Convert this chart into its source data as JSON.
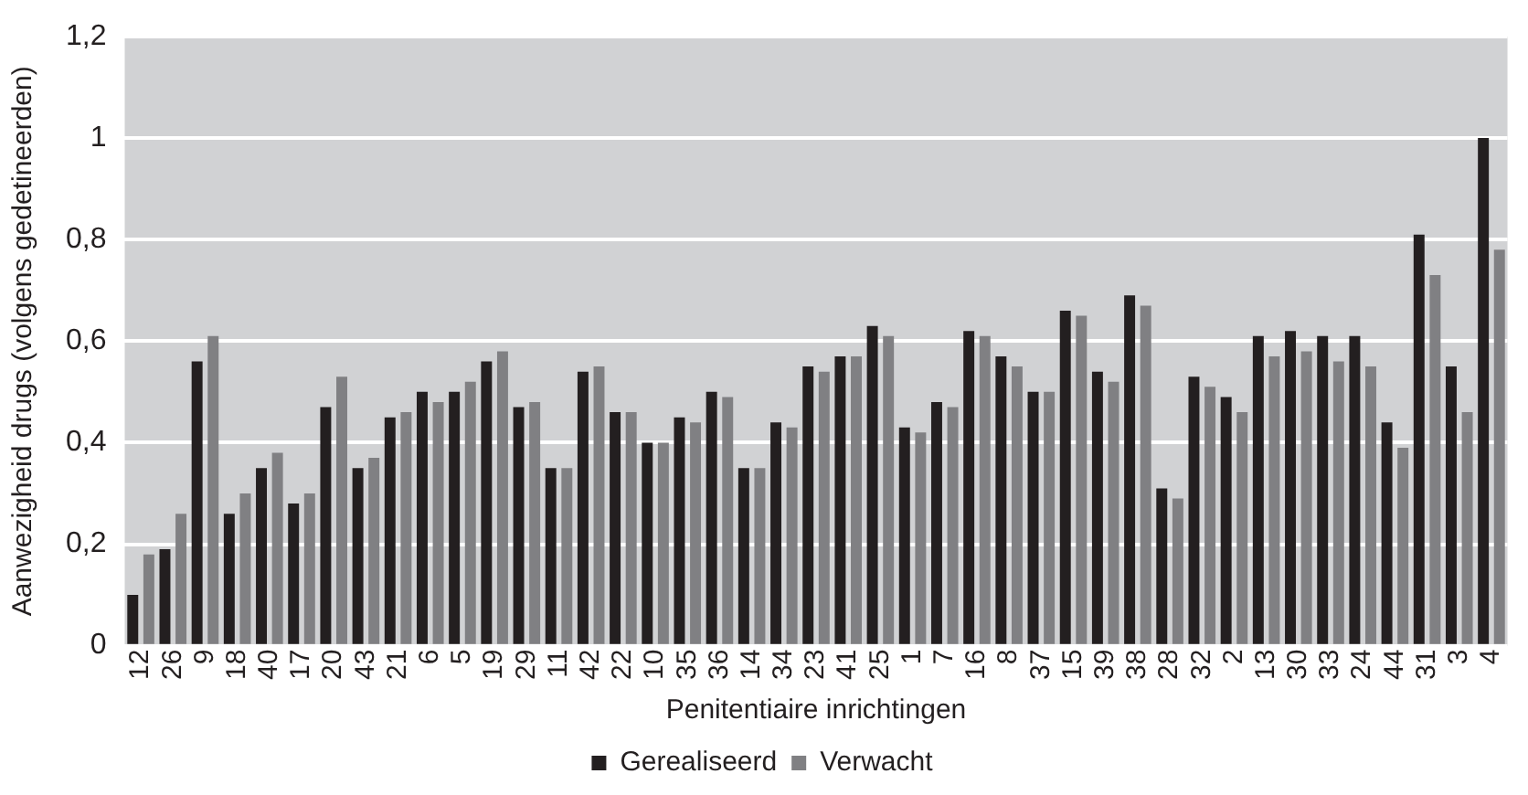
{
  "chart_data": {
    "type": "bar",
    "xlabel": "Penitentiaire inrichtingen",
    "ylabel": "Aanwezigheid drugs (volgens gedetineerden)",
    "categories": [
      "12",
      "26",
      "9",
      "18",
      "40",
      "17",
      "20",
      "43",
      "21",
      "6",
      "5",
      "19",
      "29",
      "11",
      "42",
      "22",
      "10",
      "35",
      "36",
      "14",
      "34",
      "23",
      "41",
      "25",
      "1",
      "7",
      "16",
      "8",
      "37",
      "15",
      "39",
      "38",
      "28",
      "32",
      "2",
      "13",
      "30",
      "33",
      "24",
      "44",
      "31",
      "3",
      "4"
    ],
    "series": [
      {
        "name": "Gerealiseerd",
        "color": "#231f20",
        "values": [
          0.1,
          0.19,
          0.56,
          0.26,
          0.35,
          0.28,
          0.47,
          0.35,
          0.45,
          0.5,
          0.5,
          0.56,
          0.47,
          0.35,
          0.54,
          0.46,
          0.4,
          0.45,
          0.5,
          0.35,
          0.44,
          0.55,
          0.57,
          0.63,
          0.43,
          0.48,
          0.62,
          0.57,
          0.5,
          0.66,
          0.54,
          0.69,
          0.31,
          0.53,
          0.49,
          0.61,
          0.62,
          0.61,
          0.61,
          0.44,
          0.81,
          0.55,
          1.0
        ]
      },
      {
        "name": "Verwacht",
        "color": "#808083",
        "values": [
          0.18,
          0.26,
          0.61,
          0.3,
          0.38,
          0.3,
          0.53,
          0.37,
          0.46,
          0.48,
          0.52,
          0.58,
          0.48,
          0.35,
          0.55,
          0.46,
          0.4,
          0.44,
          0.49,
          0.35,
          0.43,
          0.54,
          0.57,
          0.61,
          0.42,
          0.47,
          0.61,
          0.55,
          0.5,
          0.65,
          0.52,
          0.67,
          0.29,
          0.51,
          0.46,
          0.57,
          0.58,
          0.56,
          0.55,
          0.39,
          0.73,
          0.46,
          0.78
        ]
      }
    ],
    "ylim": [
      0,
      1.2
    ],
    "yticks": [
      0,
      {
        "value": 0.2,
        "label": "0,2"
      },
      {
        "value": 0.4,
        "label": "0,4"
      },
      {
        "value": 0.6,
        "label": "0,6"
      },
      {
        "value": 0.8,
        "label": "0,8"
      },
      1,
      {
        "value": 1.2,
        "label": "1,2"
      }
    ],
    "grid": "y",
    "legend": "bottom"
  }
}
